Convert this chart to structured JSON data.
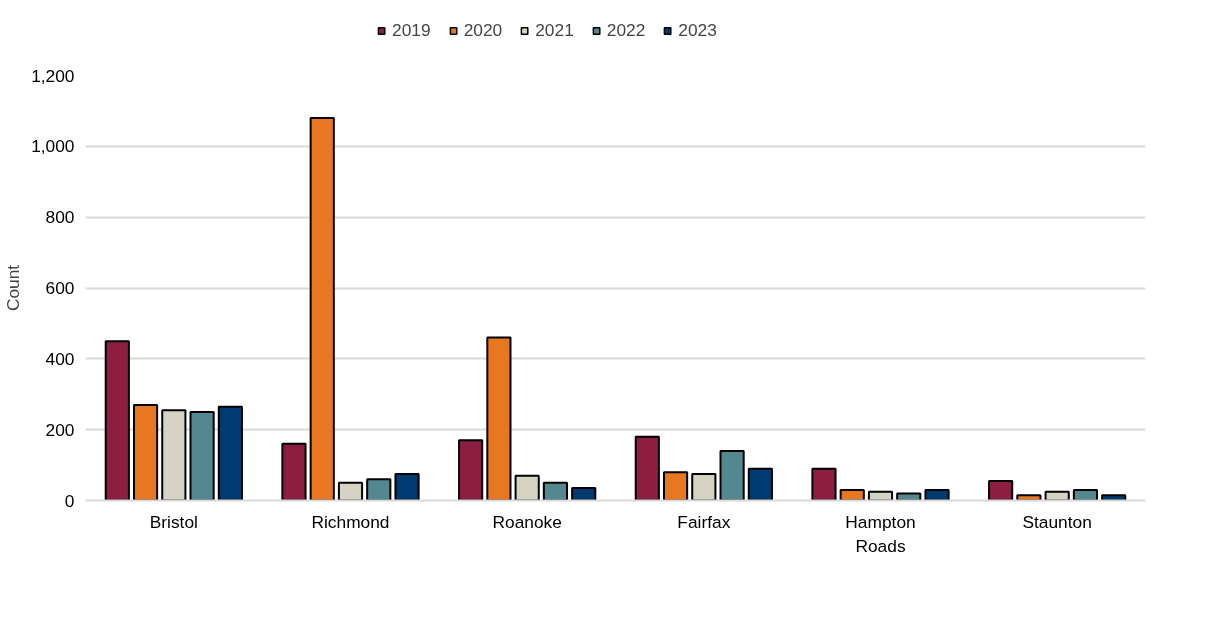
{
  "chart_data": {
    "type": "bar",
    "ylabel": "Count",
    "categories": [
      "Bristol",
      "Richmond",
      "Roanoke",
      "Fairfax",
      "Hampton Roads",
      "Staunton"
    ],
    "series": [
      {
        "name": "2019",
        "color": "#8b1e41",
        "values": [
          450,
          160,
          170,
          180,
          90,
          55
        ]
      },
      {
        "name": "2020",
        "color": "#e87722",
        "values": [
          270,
          1080,
          460,
          80,
          30,
          15
        ]
      },
      {
        "name": "2021",
        "color": "#d6d2c4",
        "values": [
          255,
          50,
          70,
          75,
          25,
          25
        ]
      },
      {
        "name": "2022",
        "color": "#548891",
        "values": [
          250,
          60,
          50,
          140,
          20,
          30
        ]
      },
      {
        "name": "2023",
        "color": "#003a70",
        "values": [
          265,
          75,
          35,
          90,
          30,
          15
        ]
      }
    ],
    "ylim": [
      0,
      1200
    ],
    "yticks": [
      0,
      200,
      400,
      600,
      800,
      {
        "value": 1000,
        "label": "1,000"
      },
      {
        "value": 1200,
        "label": "1,200"
      }
    ],
    "grid": "y",
    "legend": "top"
  }
}
